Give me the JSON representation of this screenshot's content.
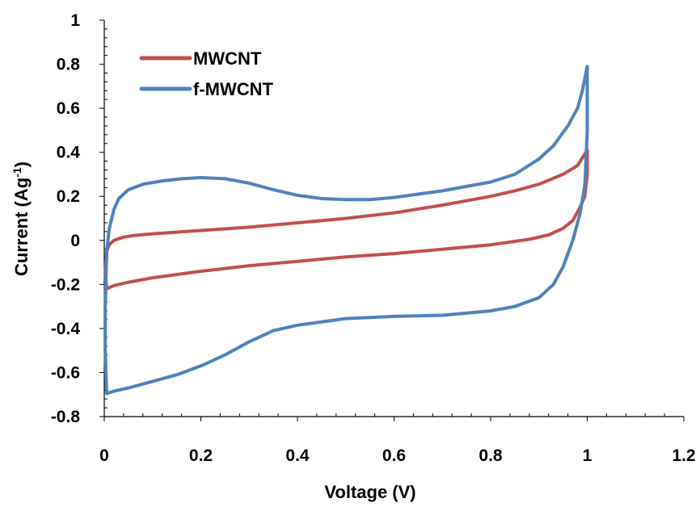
{
  "chart_data": {
    "type": "line",
    "title": "",
    "xlabel": "Voltage (V)",
    "ylabel": {
      "prefix": "Current (Ag",
      "sup": "-1",
      "suffix": ")"
    },
    "xlim": [
      0,
      1.2
    ],
    "ylim": [
      -0.8,
      1
    ],
    "xticks": [
      0,
      0.2,
      0.4,
      0.6,
      0.8,
      1,
      1.2
    ],
    "xtick_labels": [
      "0",
      "0.2",
      "0.4",
      "0.6",
      "0.8",
      "1",
      "1.2"
    ],
    "yticks": [
      -0.8,
      -0.6,
      -0.4,
      -0.2,
      0,
      0.2,
      0.4,
      0.6,
      0.8,
      1
    ],
    "ytick_labels": [
      "-0.8",
      "-0.6",
      "-0.4",
      "-0.2",
      "0",
      "0.2",
      "0.4",
      "0.6",
      "0.8",
      "1"
    ],
    "grid": false,
    "legend_position": "top-left",
    "series": [
      {
        "name": "MWCNT",
        "color": "#c0504d",
        "points": [
          [
            0.005,
            -0.05
          ],
          [
            0.01,
            -0.02
          ],
          [
            0.02,
            0.0
          ],
          [
            0.04,
            0.015
          ],
          [
            0.06,
            0.022
          ],
          [
            0.1,
            0.03
          ],
          [
            0.2,
            0.045
          ],
          [
            0.3,
            0.06
          ],
          [
            0.4,
            0.08
          ],
          [
            0.5,
            0.1
          ],
          [
            0.6,
            0.125
          ],
          [
            0.7,
            0.16
          ],
          [
            0.8,
            0.2
          ],
          [
            0.85,
            0.225
          ],
          [
            0.9,
            0.255
          ],
          [
            0.95,
            0.3
          ],
          [
            0.98,
            0.34
          ],
          [
            1.0,
            0.41
          ],
          [
            1.0,
            0.3
          ],
          [
            0.995,
            0.2
          ],
          [
            0.985,
            0.15
          ],
          [
            0.97,
            0.09
          ],
          [
            0.95,
            0.055
          ],
          [
            0.92,
            0.025
          ],
          [
            0.88,
            0.005
          ],
          [
            0.8,
            -0.02
          ],
          [
            0.7,
            -0.04
          ],
          [
            0.6,
            -0.06
          ],
          [
            0.5,
            -0.075
          ],
          [
            0.4,
            -0.095
          ],
          [
            0.3,
            -0.115
          ],
          [
            0.2,
            -0.14
          ],
          [
            0.1,
            -0.17
          ],
          [
            0.05,
            -0.19
          ],
          [
            0.02,
            -0.205
          ],
          [
            0.005,
            -0.22
          ],
          [
            0.002,
            -0.15
          ],
          [
            0.005,
            -0.05
          ]
        ]
      },
      {
        "name": "f-MWCNT",
        "color": "#4f81bd",
        "points": [
          [
            0.002,
            -0.3
          ],
          [
            0.005,
            -0.05
          ],
          [
            0.01,
            0.05
          ],
          [
            0.02,
            0.14
          ],
          [
            0.03,
            0.19
          ],
          [
            0.05,
            0.23
          ],
          [
            0.08,
            0.255
          ],
          [
            0.12,
            0.27
          ],
          [
            0.16,
            0.28
          ],
          [
            0.2,
            0.285
          ],
          [
            0.25,
            0.28
          ],
          [
            0.3,
            0.26
          ],
          [
            0.35,
            0.23
          ],
          [
            0.4,
            0.205
          ],
          [
            0.45,
            0.19
          ],
          [
            0.5,
            0.185
          ],
          [
            0.55,
            0.185
          ],
          [
            0.6,
            0.195
          ],
          [
            0.65,
            0.21
          ],
          [
            0.7,
            0.225
          ],
          [
            0.75,
            0.245
          ],
          [
            0.8,
            0.265
          ],
          [
            0.85,
            0.3
          ],
          [
            0.9,
            0.37
          ],
          [
            0.93,
            0.43
          ],
          [
            0.96,
            0.52
          ],
          [
            0.98,
            0.6
          ],
          [
            0.99,
            0.68
          ],
          [
            1.0,
            0.79
          ],
          [
            1.0,
            0.5
          ],
          [
            0.995,
            0.25
          ],
          [
            0.985,
            0.12
          ],
          [
            0.97,
            0.0
          ],
          [
            0.95,
            -0.12
          ],
          [
            0.93,
            -0.2
          ],
          [
            0.9,
            -0.26
          ],
          [
            0.85,
            -0.3
          ],
          [
            0.8,
            -0.32
          ],
          [
            0.7,
            -0.34
          ],
          [
            0.6,
            -0.345
          ],
          [
            0.5,
            -0.355
          ],
          [
            0.4,
            -0.385
          ],
          [
            0.35,
            -0.41
          ],
          [
            0.3,
            -0.46
          ],
          [
            0.25,
            -0.52
          ],
          [
            0.2,
            -0.57
          ],
          [
            0.15,
            -0.61
          ],
          [
            0.1,
            -0.64
          ],
          [
            0.05,
            -0.67
          ],
          [
            0.02,
            -0.685
          ],
          [
            0.005,
            -0.695
          ],
          [
            0.002,
            -0.5
          ],
          [
            0.002,
            -0.3
          ]
        ]
      }
    ]
  }
}
